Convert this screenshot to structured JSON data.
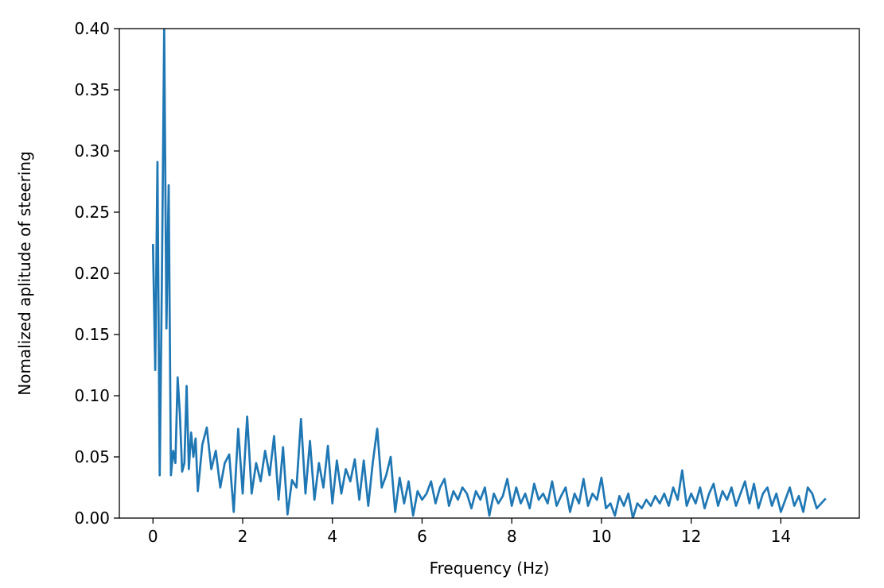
{
  "chart_data": {
    "type": "line",
    "xlabel": "Frequency (Hz)",
    "ylabel": "Nomalized aplitude of steering",
    "color": "#1f77b4",
    "grid": false,
    "xlim": [
      -0.75,
      15.75
    ],
    "ylim": [
      0,
      0.4
    ],
    "xticks": [
      0,
      2,
      4,
      6,
      8,
      10,
      12,
      14
    ],
    "yticks": [
      {
        "value": 0,
        "label": "0.00"
      },
      {
        "value": 0.05,
        "label": "0.05"
      },
      {
        "value": 0.1,
        "label": "0.10"
      },
      {
        "value": 0.15,
        "label": "0.15"
      },
      {
        "value": 0.2,
        "label": "0.20"
      },
      {
        "value": 0.25,
        "label": "0.25"
      },
      {
        "value": 0.3,
        "label": "0.30"
      },
      {
        "value": 0.35,
        "label": "0.35"
      },
      {
        "value": 0.4,
        "label": "0.40"
      }
    ],
    "x": [
      0,
      0.05,
      0.1,
      0.15,
      0.2,
      0.25,
      0.3,
      0.35,
      0.4,
      0.45,
      0.5,
      0.55,
      0.6,
      0.65,
      0.7,
      0.75,
      0.8,
      0.85,
      0.9,
      0.95,
      1.0,
      1.1,
      1.2,
      1.3,
      1.4,
      1.5,
      1.6,
      1.7,
      1.8,
      1.9,
      2.0,
      2.1,
      2.2,
      2.3,
      2.4,
      2.5,
      2.6,
      2.7,
      2.8,
      2.9,
      3.0,
      3.1,
      3.2,
      3.3,
      3.4,
      3.5,
      3.6,
      3.7,
      3.8,
      3.9,
      4.0,
      4.1,
      4.2,
      4.3,
      4.4,
      4.5,
      4.6,
      4.7,
      4.8,
      4.9,
      5.0,
      5.1,
      5.2,
      5.3,
      5.4,
      5.5,
      5.6,
      5.7,
      5.8,
      5.9,
      6.0,
      6.1,
      6.2,
      6.3,
      6.4,
      6.5,
      6.6,
      6.7,
      6.8,
      6.9,
      7.0,
      7.1,
      7.2,
      7.3,
      7.4,
      7.5,
      7.6,
      7.7,
      7.8,
      7.9,
      8.0,
      8.1,
      8.2,
      8.3,
      8.4,
      8.5,
      8.6,
      8.7,
      8.8,
      8.9,
      9.0,
      9.1,
      9.2,
      9.3,
      9.4,
      9.5,
      9.6,
      9.7,
      9.8,
      9.9,
      10.0,
      10.1,
      10.2,
      10.3,
      10.4,
      10.5,
      10.6,
      10.7,
      10.8,
      10.9,
      11.0,
      11.1,
      11.2,
      11.3,
      11.4,
      11.5,
      11.6,
      11.7,
      11.8,
      11.9,
      12.0,
      12.1,
      12.2,
      12.3,
      12.4,
      12.5,
      12.6,
      12.7,
      12.8,
      12.9,
      13.0,
      13.1,
      13.2,
      13.3,
      13.4,
      13.5,
      13.6,
      13.7,
      13.8,
      13.9,
      14.0,
      14.1,
      14.2,
      14.3,
      14.4,
      14.5,
      14.6,
      14.7,
      14.8,
      14.9,
      15.0
    ],
    "values": [
      0.224,
      0.121,
      0.291,
      0.035,
      0.2,
      0.4,
      0.155,
      0.272,
      0.035,
      0.055,
      0.045,
      0.115,
      0.085,
      0.038,
      0.045,
      0.108,
      0.04,
      0.07,
      0.05,
      0.065,
      0.022,
      0.06,
      0.074,
      0.04,
      0.055,
      0.025,
      0.045,
      0.052,
      0.005,
      0.073,
      0.02,
      0.083,
      0.02,
      0.045,
      0.03,
      0.055,
      0.035,
      0.067,
      0.015,
      0.058,
      0.003,
      0.031,
      0.025,
      0.081,
      0.02,
      0.063,
      0.015,
      0.045,
      0.025,
      0.059,
      0.012,
      0.047,
      0.02,
      0.04,
      0.03,
      0.048,
      0.015,
      0.047,
      0.01,
      0.045,
      0.073,
      0.025,
      0.035,
      0.05,
      0.005,
      0.033,
      0.012,
      0.03,
      0.002,
      0.022,
      0.015,
      0.02,
      0.03,
      0.012,
      0.025,
      0.032,
      0.01,
      0.022,
      0.015,
      0.025,
      0.02,
      0.008,
      0.022,
      0.015,
      0.025,
      0.002,
      0.02,
      0.012,
      0.018,
      0.032,
      0.01,
      0.025,
      0.012,
      0.02,
      0.008,
      0.028,
      0.015,
      0.02,
      0.012,
      0.03,
      0.01,
      0.018,
      0.025,
      0.005,
      0.02,
      0.012,
      0.032,
      0.01,
      0.02,
      0.015,
      0.033,
      0.008,
      0.012,
      0.002,
      0.018,
      0.01,
      0.02,
      0.0,
      0.012,
      0.008,
      0.015,
      0.01,
      0.018,
      0.012,
      0.02,
      0.01,
      0.025,
      0.015,
      0.039,
      0.01,
      0.02,
      0.012,
      0.025,
      0.008,
      0.02,
      0.028,
      0.01,
      0.022,
      0.015,
      0.025,
      0.01,
      0.02,
      0.03,
      0.012,
      0.028,
      0.008,
      0.02,
      0.025,
      0.01,
      0.02,
      0.005,
      0.015,
      0.025,
      0.01,
      0.018,
      0.005,
      0.025,
      0.02,
      0.008,
      0.012,
      0.016
    ]
  }
}
